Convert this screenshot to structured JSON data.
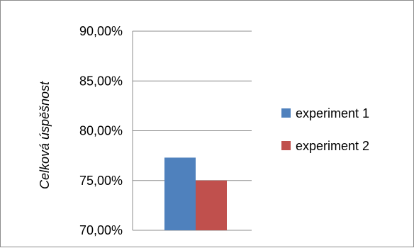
{
  "chart_data": {
    "type": "bar",
    "categories": [
      ""
    ],
    "series": [
      {
        "name": "experiment 1",
        "values": [
          77.3
        ],
        "color": "#4F81BD"
      },
      {
        "name": "experiment 2",
        "values": [
          75.0
        ],
        "color": "#C0504D"
      }
    ],
    "ylabel": "Celková úspěšnost",
    "ylim": [
      70,
      90
    ],
    "yticks": [
      "70,00%",
      "75,00%",
      "80,00%",
      "85,00%",
      "90,00%"
    ],
    "grid": true,
    "legend_position": "right"
  }
}
